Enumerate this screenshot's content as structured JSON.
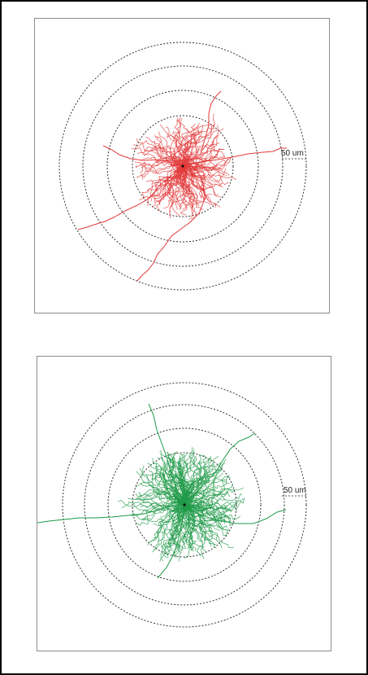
{
  "figure": {
    "panels": [
      {
        "id": "top",
        "track_color": "#e23a3a",
        "scale_label": "50 um",
        "ring_color": "#333333"
      },
      {
        "id": "bottom",
        "track_color": "#1f9a48",
        "scale_label": "50 um",
        "ring_color": "#333333"
      }
    ]
  }
}
